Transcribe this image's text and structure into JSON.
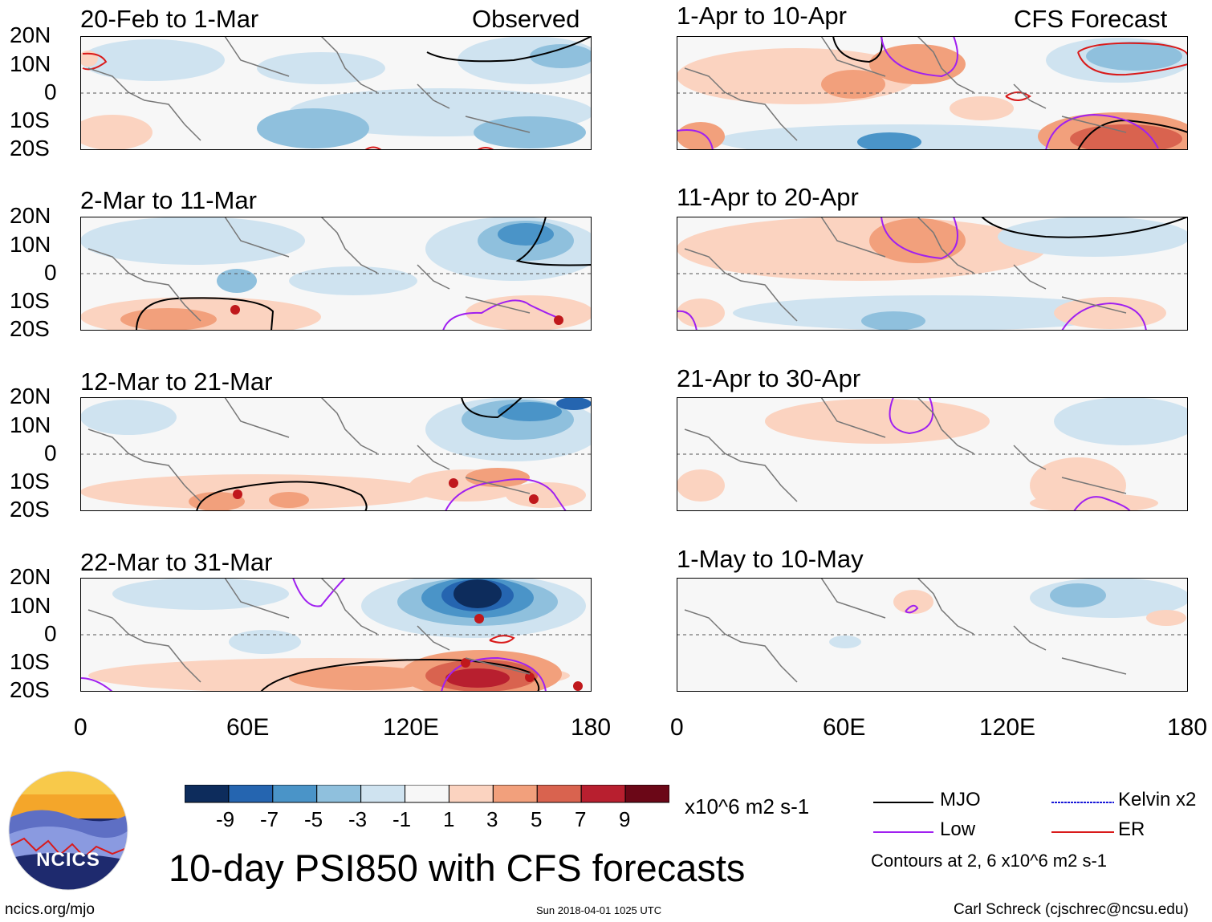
{
  "headers": {
    "observed": "Observed",
    "forecast": "CFS Forecast"
  },
  "panels": [
    {
      "title": "20-Feb to 1-Mar"
    },
    {
      "title": "2-Mar to 11-Mar"
    },
    {
      "title": "12-Mar to 21-Mar"
    },
    {
      "title": "22-Mar to 31-Mar"
    },
    {
      "title": "1-Apr to 10-Apr"
    },
    {
      "title": "11-Apr to 20-Apr"
    },
    {
      "title": "21-Apr to 30-Apr"
    },
    {
      "title": "1-May to 10-May"
    }
  ],
  "axes": {
    "lat_labels": [
      "20N",
      "10N",
      "0",
      "10S",
      "20S"
    ],
    "lon_labels": [
      "0",
      "60E",
      "120E",
      "180"
    ]
  },
  "colorbar": {
    "labels": [
      "-9",
      "-7",
      "-5",
      "-3",
      "-1",
      "1",
      "3",
      "5",
      "7",
      "9"
    ],
    "units": "x10^6 m2 s-1",
    "colors": [
      "#0d2c5c",
      "#2565b0",
      "#4a94c8",
      "#8fc0dd",
      "#cfe3f0",
      "#f7f7f7",
      "#fbd3c0",
      "#f2a07c",
      "#d9634f",
      "#b81f2f",
      "#6b0717"
    ]
  },
  "legend": {
    "mjo": "MJO",
    "low": "Low",
    "kelvin": "Kelvin x2",
    "er": "ER",
    "note": "Contours at 2, 6 x10^6 m2 s-1",
    "colors": {
      "mjo": "#000000",
      "low": "#a020f0",
      "kelvin": "#1a1ad9",
      "er": "#d91a1a"
    }
  },
  "logo": {
    "text": "NCICS"
  },
  "main_title": "10-day PSI850 with CFS forecasts",
  "footer": {
    "url": "ncics.org/mjo",
    "timestamp": "Sun 2018-04-01 1025 UTC",
    "author": "Carl Schreck (cjschrec@ncsu.edu)"
  }
}
